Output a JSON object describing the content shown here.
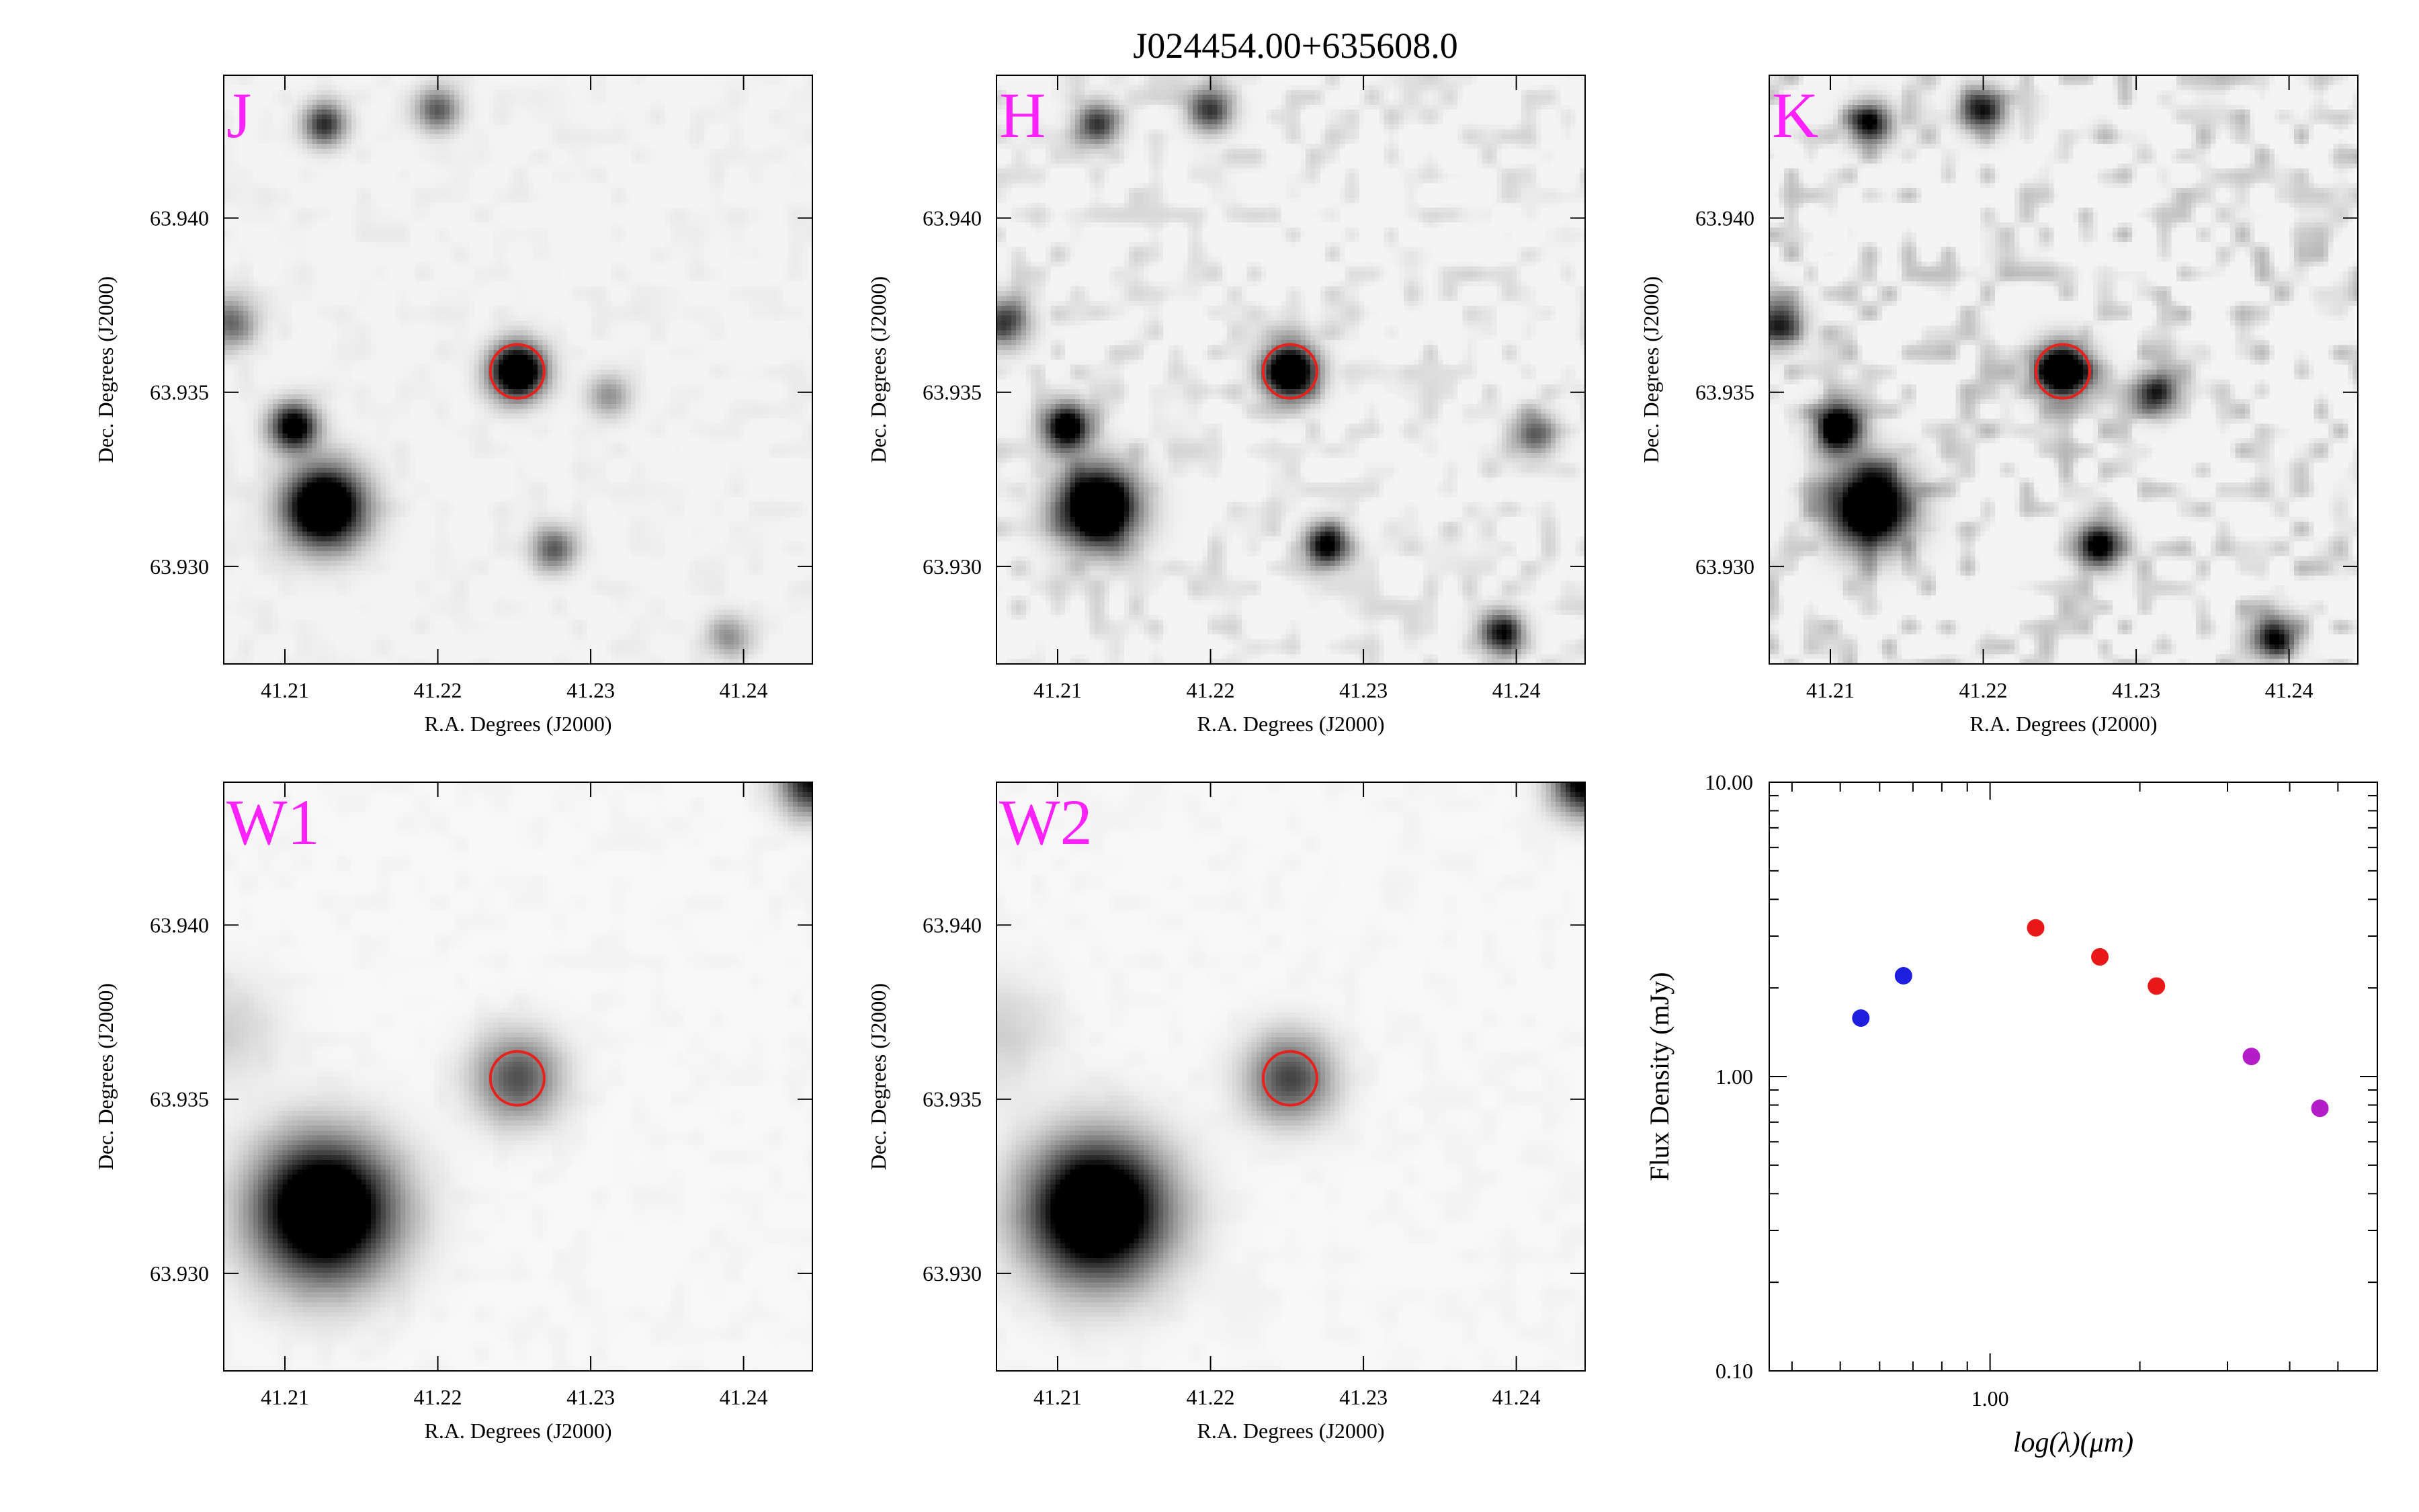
{
  "title": "J024454.00+635608.0",
  "image_axes": {
    "xlabel": "R.A. Degrees (J2000)",
    "ylabel": "Dec. Degrees (J2000)",
    "xlim": [
      41.206,
      41.2445
    ],
    "ylim": [
      63.9272,
      63.9441
    ],
    "xticks": [
      41.21,
      41.22,
      41.23,
      41.24
    ],
    "xtick_labels": [
      "41.21",
      "41.22",
      "41.23",
      "41.24"
    ],
    "yticks": [
      63.93,
      63.935,
      63.94
    ],
    "ytick_labels": [
      "63.930",
      "63.935",
      "63.940"
    ]
  },
  "marker": {
    "ra": 41.2252,
    "dec": 63.9356,
    "color": "#e8211c"
  },
  "label_color": "#ff22ff",
  "panels": [
    {
      "band": "J",
      "style": "2mass",
      "noise": 0.05,
      "sources": [
        {
          "ra": 41.2126,
          "dec": 63.9317,
          "amp": 1.0,
          "sigma": 0.0011
        },
        {
          "ra": 41.2252,
          "dec": 63.9356,
          "amp": 0.95,
          "sigma": 0.00075
        },
        {
          "ra": 41.2106,
          "dec": 63.934,
          "amp": 0.75,
          "sigma": 0.00065
        },
        {
          "ra": 41.2126,
          "dec": 63.9427,
          "amp": 0.5,
          "sigma": 0.0006
        },
        {
          "ra": 41.22,
          "dec": 63.9431,
          "amp": 0.4,
          "sigma": 0.0006
        },
        {
          "ra": 41.2276,
          "dec": 63.9305,
          "amp": 0.4,
          "sigma": 0.0006
        },
        {
          "ra": 41.2312,
          "dec": 63.9349,
          "amp": 0.25,
          "sigma": 0.0006
        },
        {
          "ra": 41.239,
          "dec": 63.928,
          "amp": 0.25,
          "sigma": 0.0006
        },
        {
          "ra": 41.2065,
          "dec": 63.937,
          "amp": 0.35,
          "sigma": 0.0007
        }
      ]
    },
    {
      "band": "H",
      "style": "2mass",
      "noise": 0.16,
      "sources": [
        {
          "ra": 41.2126,
          "dec": 63.9317,
          "amp": 1.0,
          "sigma": 0.0011
        },
        {
          "ra": 41.2252,
          "dec": 63.9356,
          "amp": 0.95,
          "sigma": 0.00075
        },
        {
          "ra": 41.2106,
          "dec": 63.934,
          "amp": 0.8,
          "sigma": 0.00065
        },
        {
          "ra": 41.2126,
          "dec": 63.9427,
          "amp": 0.5,
          "sigma": 0.0006
        },
        {
          "ra": 41.22,
          "dec": 63.9431,
          "amp": 0.5,
          "sigma": 0.0006
        },
        {
          "ra": 41.2276,
          "dec": 63.9306,
          "amp": 0.7,
          "sigma": 0.0006
        },
        {
          "ra": 41.239,
          "dec": 63.9281,
          "amp": 0.6,
          "sigma": 0.0006
        },
        {
          "ra": 41.2412,
          "dec": 63.9338,
          "amp": 0.4,
          "sigma": 0.0006
        },
        {
          "ra": 41.2065,
          "dec": 63.937,
          "amp": 0.45,
          "sigma": 0.0007
        }
      ]
    },
    {
      "band": "K",
      "style": "2mass",
      "noise": 0.28,
      "sources": [
        {
          "ra": 41.2126,
          "dec": 63.9317,
          "amp": 1.0,
          "sigma": 0.0011
        },
        {
          "ra": 41.2252,
          "dec": 63.9356,
          "amp": 0.95,
          "sigma": 0.00075
        },
        {
          "ra": 41.2106,
          "dec": 63.934,
          "amp": 0.85,
          "sigma": 0.00065
        },
        {
          "ra": 41.2126,
          "dec": 63.9427,
          "amp": 0.6,
          "sigma": 0.0006
        },
        {
          "ra": 41.22,
          "dec": 63.9431,
          "amp": 0.6,
          "sigma": 0.0006
        },
        {
          "ra": 41.2276,
          "dec": 63.9306,
          "amp": 0.75,
          "sigma": 0.0006
        },
        {
          "ra": 41.239,
          "dec": 63.928,
          "amp": 0.6,
          "sigma": 0.0006
        },
        {
          "ra": 41.2312,
          "dec": 63.935,
          "amp": 0.5,
          "sigma": 0.0006
        },
        {
          "ra": 41.2065,
          "dec": 63.937,
          "amp": 0.5,
          "sigma": 0.0007
        }
      ]
    },
    {
      "band": "W1",
      "style": "wise",
      "noise": 0.03,
      "sources": [
        {
          "ra": 41.2126,
          "dec": 63.9318,
          "amp": 1.0,
          "sigma": 0.0019
        },
        {
          "ra": 41.2252,
          "dec": 63.9356,
          "amp": 0.42,
          "sigma": 0.0012
        },
        {
          "ra": 41.2445,
          "dec": 63.9441,
          "amp": 0.6,
          "sigma": 0.0009
        },
        {
          "ra": 41.206,
          "dec": 63.937,
          "amp": 0.1,
          "sigma": 0.0015
        }
      ]
    },
    {
      "band": "W2",
      "style": "wise",
      "noise": 0.03,
      "sources": [
        {
          "ra": 41.2126,
          "dec": 63.9318,
          "amp": 1.0,
          "sigma": 0.0019
        },
        {
          "ra": 41.2252,
          "dec": 63.9356,
          "amp": 0.45,
          "sigma": 0.0012
        },
        {
          "ra": 41.2445,
          "dec": 63.9441,
          "amp": 0.7,
          "sigma": 0.0009
        },
        {
          "ra": 41.206,
          "dec": 63.937,
          "amp": 0.1,
          "sigma": 0.0015
        }
      ]
    }
  ],
  "chart_data": {
    "type": "scatter",
    "title": "",
    "xlabel": "log(λ)(μm)",
    "ylabel": "Flux Density (mJy)",
    "xscale": "log",
    "yscale": "log",
    "xlim": [
      0.36,
      6.0
    ],
    "ylim": [
      0.1,
      10.0
    ],
    "xticks": [
      1.0
    ],
    "xtick_labels": [
      "1.00"
    ],
    "yticks": [
      0.1,
      1.0,
      10.0
    ],
    "ytick_labels": [
      "0.10",
      "1.00",
      "10.00"
    ],
    "grid": false,
    "series": [
      {
        "color": "#1f1fe0",
        "x": [
          0.55,
          0.67
        ],
        "y": [
          1.58,
          2.2
        ]
      },
      {
        "color": "#e81818",
        "x": [
          1.235,
          1.662,
          2.159
        ],
        "y": [
          3.2,
          2.55,
          2.03
        ]
      },
      {
        "color": "#b41cc8",
        "x": [
          3.35,
          4.6
        ],
        "y": [
          1.17,
          0.78
        ]
      }
    ]
  }
}
